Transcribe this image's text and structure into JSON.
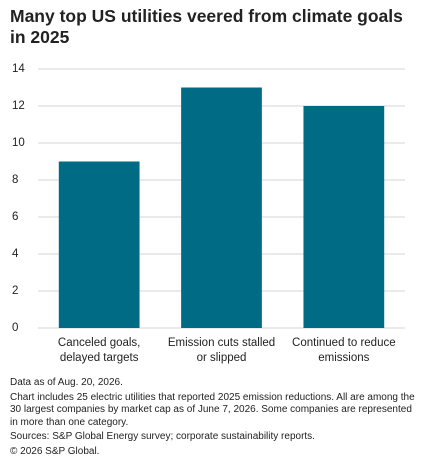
{
  "chart_data": {
    "type": "bar",
    "title": "Many top US utilities veered from climate goals in 2025",
    "categories": [
      "Canceled goals, delayed targets",
      "Emission cuts stalled or slipped",
      "Continued to reduce emissions"
    ],
    "values": [
      9,
      13,
      12
    ],
    "color": "#006b84",
    "ylim": [
      0,
      14
    ],
    "yticks": [
      0,
      2,
      4,
      6,
      8,
      10,
      12,
      14
    ],
    "grid": true,
    "notes": [
      "Data as of Aug. 20, 2026.",
      "Chart includes 25 electric utilities that reported 2025 emission reductions. All are among the 30 largest companies by market cap as of June 7, 2026. Some companies are represented in more than one category.",
      "Sources: S&P Global Energy survey; corporate sustainability reports.",
      "© 2026 S&P Global."
    ]
  }
}
